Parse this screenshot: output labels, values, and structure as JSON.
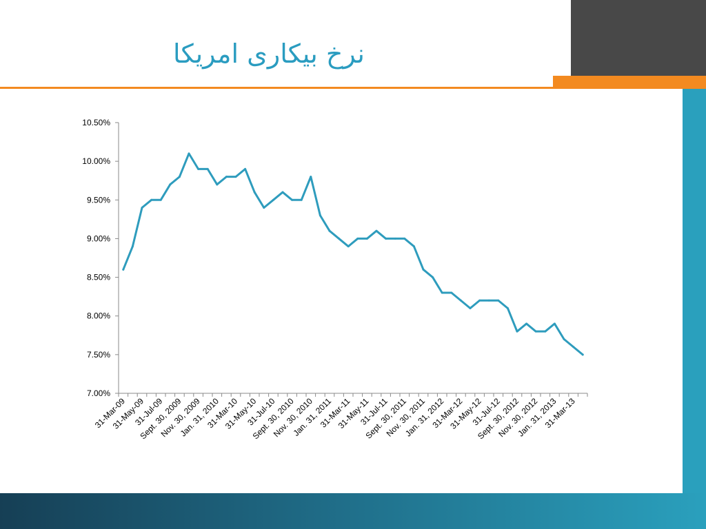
{
  "slide": {
    "title": "نرخ بیکاری امریکا",
    "colors": {
      "title": "#2a9cc0",
      "accent_orange": "#f38a20",
      "dark_block": "#484848",
      "side_bar": "#2aa0bd",
      "line": "#2e9cbd"
    }
  },
  "chart_data": {
    "type": "line",
    "title": "",
    "xlabel": "",
    "ylabel": "",
    "ylim": [
      7.0,
      10.5
    ],
    "grid": false,
    "legend": "none",
    "y_ticks": [
      "7.00%",
      "7.50%",
      "8.00%",
      "8.50%",
      "9.00%",
      "9.50%",
      "10.00%",
      "10.50%"
    ],
    "y_tick_values": [
      7.0,
      7.5,
      8.0,
      8.5,
      9.0,
      9.5,
      10.0,
      10.5
    ],
    "x_tick_labels": [
      "31-Mar-09",
      "31-May-09",
      "31-Jul-09",
      "Sept. 30, 2009",
      "Nov. 30, 2009",
      "Jan. 31, 2010",
      "31-Mar-10",
      "31-May-10",
      "31-Jul-10",
      "Sept. 30, 2010",
      "Nov. 30, 2010",
      "Jan. 31, 2011",
      "31-Mar-11",
      "31-May-11",
      "31-Jul-11",
      "Sept. 30, 2011",
      "Nov. 30, 2011",
      "Jan. 31, 2012",
      "31-Mar-12",
      "31-May-12",
      "31-Jul-12",
      "Sept. 30, 2012",
      "Nov. 30, 2012",
      "Jan. 31, 2013",
      "31-Mar-13"
    ],
    "series": [
      {
        "values": [
          8.6,
          8.9,
          9.4,
          9.5,
          9.5,
          9.7,
          9.8,
          10.1,
          9.9,
          9.9,
          9.7,
          9.8,
          9.8,
          9.9,
          9.6,
          9.4,
          9.5,
          9.6,
          9.5,
          9.5,
          9.8,
          9.3,
          9.1,
          9.0,
          8.9,
          9.0,
          9.0,
          9.1,
          9.0,
          9.0,
          9.0,
          8.9,
          8.6,
          8.5,
          8.3,
          8.3,
          8.2,
          8.1,
          8.2,
          8.2,
          8.2,
          8.1,
          7.8,
          7.9,
          7.8,
          7.8,
          7.9,
          7.7,
          7.6,
          7.5
        ]
      }
    ]
  }
}
